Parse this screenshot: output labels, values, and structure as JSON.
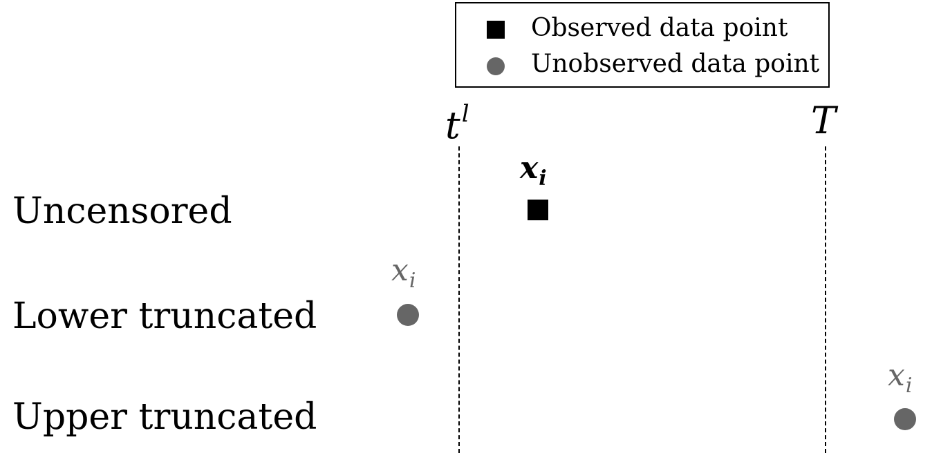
{
  "legend": {
    "observed_label": "Observed data point",
    "unobserved_label": "Unobserved data point"
  },
  "bounds": {
    "lower_base": "t",
    "lower_sup": "l",
    "upper": "T"
  },
  "rows": {
    "uncensored": "Uncensored",
    "lower_truncated": "Lower truncated",
    "upper_truncated": "Upper truncated"
  },
  "points": {
    "var": "x",
    "sub": "i"
  },
  "colors": {
    "observed": "#000000",
    "unobserved": "#666666"
  }
}
